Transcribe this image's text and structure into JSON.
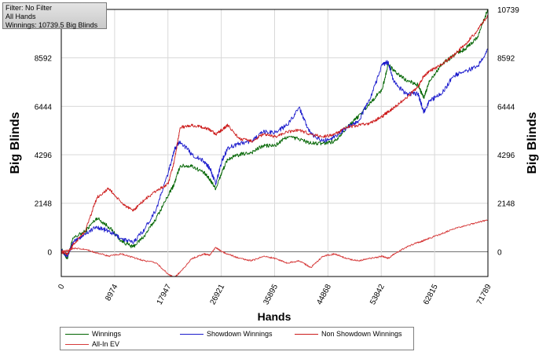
{
  "info_box": {
    "filter": "Filter: No Filter",
    "hands": "All Hands",
    "winnings": "Winnings: 10739.5 Big Blinds"
  },
  "colors": {
    "winnings": "#006400",
    "showdown": "#1a1acc",
    "non_showdown": "#cc1a1a",
    "allin_ev": "#d63a3a",
    "grid": "#d8d8d8"
  },
  "chart_data": {
    "type": "line",
    "xlabel": "Hands",
    "ylabel": "Big Blinds",
    "xlim": [
      0,
      71789
    ],
    "ylim": [
      -1100,
      10739
    ],
    "x_ticks": [
      "0",
      "8974",
      "17947",
      "26921",
      "35895",
      "44868",
      "53842",
      "62815",
      "71789"
    ],
    "y_ticks": [
      "0",
      "2148",
      "4296",
      "6444",
      "8592",
      "10739"
    ],
    "grid": true,
    "legend_position": "bottom",
    "x": [
      0,
      1000,
      2000,
      4000,
      6000,
      8000,
      10000,
      12000,
      14000,
      16000,
      18000,
      19000,
      20000,
      22000,
      24000,
      25000,
      26000,
      27000,
      28000,
      30000,
      32000,
      34000,
      36000,
      38000,
      40000,
      42000,
      44000,
      46000,
      48000,
      50000,
      52000,
      54000,
      55000,
      56000,
      58000,
      60000,
      61000,
      62000,
      64000,
      66000,
      68000,
      70000,
      71789
    ],
    "series": [
      {
        "name": "Winnings",
        "values": [
          100,
          -300,
          600,
          900,
          1500,
          1100,
          500,
          200,
          700,
          1500,
          2500,
          3000,
          3800,
          3800,
          3500,
          3200,
          2800,
          3500,
          4100,
          4300,
          4400,
          4700,
          4700,
          5100,
          5000,
          4800,
          4800,
          4900,
          5500,
          6000,
          6600,
          7200,
          8300,
          8000,
          7600,
          7400,
          6800,
          7600,
          8300,
          8700,
          9000,
          9500,
          10739
        ]
      },
      {
        "name": "Showdown Winnings",
        "values": [
          100,
          -200,
          400,
          800,
          1100,
          900,
          600,
          400,
          1000,
          1900,
          3500,
          4500,
          4900,
          4300,
          4000,
          3700,
          3000,
          4000,
          4600,
          4800,
          4900,
          5300,
          5300,
          5600,
          6400,
          5200,
          4900,
          5100,
          5500,
          5800,
          6800,
          8300,
          8400,
          7500,
          7000,
          7000,
          6200,
          6700,
          7000,
          7800,
          8000,
          8200,
          9000
        ]
      },
      {
        "name": "Non Showdown Winnings",
        "values": [
          0,
          -100,
          300,
          900,
          2400,
          2800,
          2200,
          1800,
          2300,
          2700,
          3000,
          4000,
          5500,
          5600,
          5500,
          5400,
          5200,
          5400,
          5600,
          5000,
          4900,
          5200,
          5100,
          5300,
          5400,
          5200,
          5100,
          5200,
          5500,
          5600,
          5700,
          6000,
          6200,
          6400,
          6800,
          7300,
          7800,
          8000,
          8300,
          8700,
          9200,
          9800,
          10500
        ]
      },
      {
        "name": "All-In EV",
        "values": [
          0,
          50,
          150,
          100,
          -50,
          -200,
          -100,
          -250,
          -400,
          -500,
          -1000,
          -1150,
          -900,
          -300,
          -100,
          -150,
          200,
          0,
          -100,
          -300,
          -400,
          -200,
          -300,
          -500,
          -400,
          -700,
          -200,
          -100,
          -300,
          -400,
          -300,
          -200,
          -300,
          -100,
          200,
          400,
          500,
          600,
          800,
          1000,
          1150,
          1300,
          1400
        ]
      }
    ]
  }
}
